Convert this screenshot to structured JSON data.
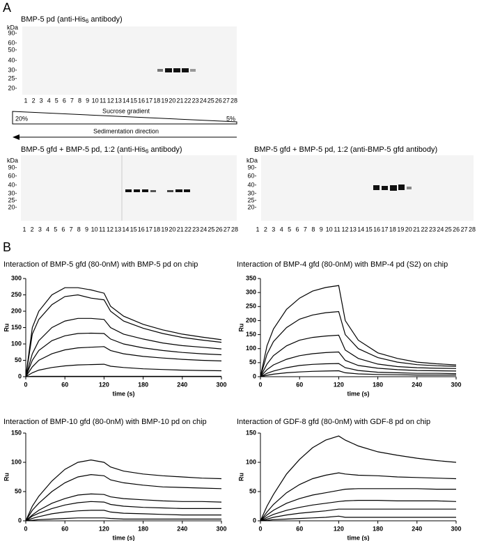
{
  "panel_a": {
    "label": "A",
    "lanes": [
      "1",
      "2",
      "3",
      "4",
      "5",
      "6",
      "7",
      "8",
      "9",
      "10",
      "11",
      "12",
      "13",
      "14",
      "15",
      "16",
      "17",
      "18",
      "19",
      "20",
      "21",
      "22",
      "23",
      "24",
      "25",
      "26",
      "27",
      "28"
    ],
    "blots": [
      {
        "title_parts": [
          "BMP-5 pd (anti-His",
          "6",
          " antibody)"
        ],
        "kda": [
          "kDa",
          "90-",
          "60-",
          "50-",
          "40-",
          "30-",
          "25-",
          "20-"
        ]
      },
      {
        "title_parts": [
          "BMP-5 gfd + BMP-5 pd, 1:2 (anti-His",
          "6",
          " antibody)"
        ],
        "kda": [
          "kDa",
          "90-",
          "60-",
          "40-",
          "30-",
          "25-",
          "20-"
        ]
      },
      {
        "title_parts": [
          "BMP-5 gfd + BMP-5 pd, 1:2 (anti-BMP-5 gfd antibody)"
        ],
        "kda": [
          "kDa",
          "90-",
          "60-",
          "40-",
          "30-",
          "25-",
          "20-"
        ]
      }
    ],
    "gradient": {
      "left": "20%",
      "label": "Sucrose gradient",
      "right": "5%"
    },
    "sedimentation": "Sedimentation direction"
  },
  "panel_b": {
    "label": "B"
  },
  "chart_data": [
    {
      "type": "line",
      "title": "Interaction of BMP-5 gfd (80-0nM) with BMP-5 pd on chip",
      "x_label": "time (s)",
      "y_label": "Ru",
      "x": [
        0,
        10,
        20,
        40,
        60,
        80,
        100,
        120,
        130,
        150,
        180,
        210,
        240,
        270,
        300
      ],
      "xlim": [
        0,
        300
      ],
      "xticks": [
        0,
        60,
        120,
        180,
        240,
        300
      ],
      "ylim": [
        0,
        300
      ],
      "yticks": [
        0,
        50,
        100,
        150,
        200,
        250,
        300
      ],
      "series": [
        {
          "color": "#000000",
          "values": [
            0,
            150,
            200,
            250,
            272,
            272,
            265,
            255,
            215,
            185,
            160,
            143,
            130,
            121,
            113
          ]
        },
        {
          "color": "#000000",
          "values": [
            0,
            130,
            175,
            220,
            245,
            250,
            240,
            235,
            200,
            170,
            148,
            132,
            120,
            112,
            105
          ]
        },
        {
          "color": "#000000",
          "values": [
            0,
            70,
            110,
            150,
            170,
            178,
            178,
            175,
            150,
            130,
            115,
            103,
            95,
            90,
            85
          ]
        },
        {
          "color": "#000000",
          "values": [
            0,
            50,
            80,
            110,
            125,
            132,
            133,
            132,
            115,
            100,
            88,
            80,
            74,
            70,
            67
          ]
        },
        {
          "color": "#000000",
          "values": [
            0,
            30,
            50,
            70,
            82,
            88,
            90,
            92,
            80,
            70,
            62,
            57,
            53,
            50,
            48
          ]
        },
        {
          "color": "#000000",
          "values": [
            0,
            12,
            20,
            28,
            33,
            36,
            37,
            38,
            32,
            28,
            24,
            22,
            20,
            19,
            18
          ]
        },
        {
          "color": "#000000",
          "values": [
            0,
            1,
            1,
            1,
            1,
            1,
            1,
            1,
            1,
            1,
            1,
            1,
            1,
            1,
            1
          ]
        }
      ]
    },
    {
      "type": "line",
      "title": "Interaction of BMP-4 gfd (80-0nM) with BMP-4 pd (S2) on chip",
      "x_label": "time (s)",
      "y_label": "Ru",
      "x": [
        0,
        10,
        20,
        40,
        60,
        80,
        100,
        120,
        130,
        150,
        180,
        210,
        240,
        270,
        300
      ],
      "xlim": [
        0,
        300
      ],
      "xticks": [
        0,
        60,
        120,
        180,
        240,
        300
      ],
      "ylim": [
        0,
        350
      ],
      "yticks": [
        0,
        50,
        100,
        150,
        200,
        250,
        300,
        350
      ],
      "series": [
        {
          "color": "#000000",
          "values": [
            0,
            110,
            170,
            240,
            280,
            305,
            318,
            325,
            200,
            130,
            85,
            65,
            52,
            46,
            42
          ]
        },
        {
          "color": "#000000",
          "values": [
            0,
            80,
            125,
            175,
            205,
            220,
            228,
            232,
            150,
            100,
            68,
            52,
            43,
            39,
            37
          ]
        },
        {
          "color": "#000000",
          "values": [
            0,
            45,
            75,
            110,
            130,
            140,
            145,
            148,
            95,
            65,
            45,
            36,
            32,
            30,
            29
          ]
        },
        {
          "color": "#000000",
          "values": [
            0,
            25,
            42,
            62,
            75,
            82,
            86,
            88,
            58,
            40,
            30,
            25,
            22,
            21,
            20
          ]
        },
        {
          "color": "#000000",
          "values": [
            0,
            12,
            20,
            32,
            40,
            44,
            46,
            47,
            32,
            22,
            16,
            14,
            12,
            12,
            11
          ]
        },
        {
          "color": "#000000",
          "values": [
            0,
            5,
            9,
            14,
            17,
            19,
            20,
            21,
            14,
            10,
            8,
            7,
            6,
            6,
            6
          ]
        }
      ]
    },
    {
      "type": "line",
      "title": "Interaction of BMP-10 gfd (80-0nM) with BMP-10 pd on chip",
      "x_label": "time (s)",
      "y_label": "Ru",
      "x": [
        0,
        10,
        20,
        40,
        60,
        80,
        100,
        120,
        130,
        150,
        180,
        210,
        240,
        270,
        300
      ],
      "xlim": [
        0,
        300
      ],
      "xticks": [
        0,
        60,
        120,
        180,
        240,
        300
      ],
      "ylim": [
        0,
        150
      ],
      "yticks": [
        0,
        50,
        100,
        150
      ],
      "series": [
        {
          "color": "#000000",
          "values": [
            0,
            25,
            42,
            68,
            88,
            100,
            104,
            100,
            92,
            85,
            80,
            77,
            75,
            73,
            72
          ]
        },
        {
          "color": "#000000",
          "values": [
            0,
            18,
            30,
            50,
            65,
            75,
            79,
            77,
            70,
            65,
            61,
            58,
            57,
            56,
            55
          ]
        },
        {
          "color": "#000000",
          "values": [
            0,
            10,
            18,
            30,
            38,
            44,
            46,
            45,
            41,
            38,
            36,
            34,
            33,
            33,
            32
          ]
        },
        {
          "color": "#000000",
          "values": [
            0,
            8,
            13,
            21,
            27,
            31,
            33,
            32,
            28,
            25,
            23,
            22,
            21,
            21,
            21
          ]
        },
        {
          "color": "#000000",
          "values": [
            0,
            4,
            7,
            12,
            15,
            17,
            18,
            18,
            15,
            13,
            12,
            11,
            10,
            10,
            10
          ]
        },
        {
          "color": "#000000",
          "values": [
            0,
            1,
            2,
            3,
            4,
            5,
            5,
            5,
            4,
            3,
            3,
            3,
            3,
            3,
            3
          ]
        }
      ]
    },
    {
      "type": "line",
      "title": "Interaction of GDF-8 gfd (80-0nM) with GDF-8 pd on chip",
      "x_label": "time (s)",
      "y_label": "Ru",
      "x": [
        0,
        10,
        20,
        40,
        60,
        80,
        100,
        120,
        130,
        150,
        180,
        210,
        240,
        270,
        300
      ],
      "xlim": [
        0,
        300
      ],
      "xticks": [
        0,
        60,
        120,
        180,
        240,
        300
      ],
      "ylim": [
        0,
        150
      ],
      "yticks": [
        0,
        50,
        100,
        150
      ],
      "series": [
        {
          "color": "#000000",
          "values": [
            0,
            25,
            45,
            80,
            105,
            125,
            138,
            145,
            138,
            128,
            118,
            112,
            107,
            103,
            100
          ]
        },
        {
          "color": "#000000",
          "values": [
            0,
            15,
            28,
            48,
            62,
            72,
            78,
            82,
            80,
            78,
            77,
            75,
            74,
            73,
            72
          ]
        },
        {
          "color": "#000000",
          "values": [
            0,
            10,
            18,
            30,
            38,
            44,
            48,
            52,
            54,
            55,
            55,
            55,
            55,
            54,
            54
          ]
        },
        {
          "color": "#000000",
          "values": [
            0,
            6,
            11,
            18,
            23,
            27,
            30,
            33,
            34,
            35,
            35,
            34,
            34,
            34,
            33
          ]
        },
        {
          "color": "#000000",
          "values": [
            0,
            3,
            6,
            10,
            13,
            15,
            17,
            20,
            20,
            20,
            20,
            20,
            20,
            20,
            20
          ]
        },
        {
          "color": "#000000",
          "values": [
            0,
            1,
            2,
            3,
            4,
            5,
            6,
            8,
            6,
            6,
            6,
            6,
            6,
            6,
            6
          ]
        }
      ]
    }
  ]
}
